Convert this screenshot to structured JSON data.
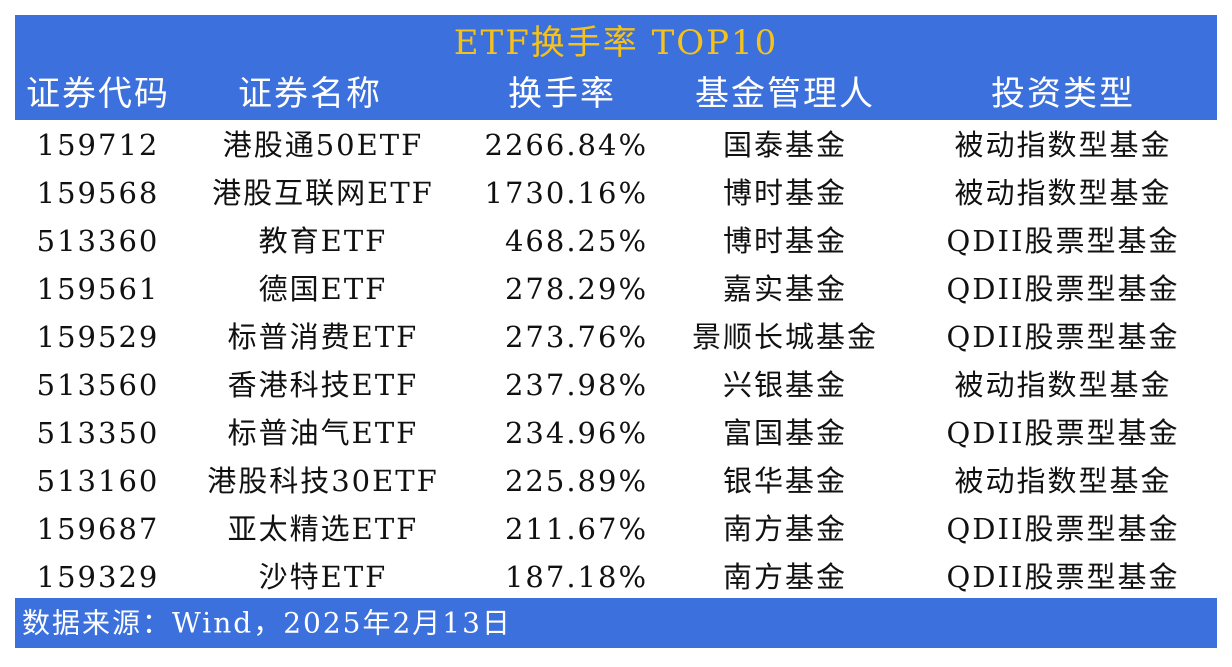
{
  "header": {
    "title": "ETF换手率 TOP10"
  },
  "table": {
    "columns": [
      "证券代码",
      "证券名称",
      "换手率",
      "基金管理人",
      "投资类型"
    ],
    "rows": [
      [
        "159712",
        "港股通50ETF",
        "2266.84%",
        "国泰基金",
        "被动指数型基金"
      ],
      [
        "159568",
        "港股互联网ETF",
        "1730.16%",
        "博时基金",
        "被动指数型基金"
      ],
      [
        "513360",
        "教育ETF",
        "468.25%",
        "博时基金",
        "QDII股票型基金"
      ],
      [
        "159561",
        "德国ETF",
        "278.29%",
        "嘉实基金",
        "QDII股票型基金"
      ],
      [
        "159529",
        "标普消费ETF",
        "273.76%",
        "景顺长城基金",
        "QDII股票型基金"
      ],
      [
        "513560",
        "香港科技ETF",
        "237.98%",
        "兴银基金",
        "被动指数型基金"
      ],
      [
        "513350",
        "标普油气ETF",
        "234.96%",
        "富国基金",
        "QDII股票型基金"
      ],
      [
        "513160",
        "港股科技30ETF",
        "225.89%",
        "银华基金",
        "被动指数型基金"
      ],
      [
        "159687",
        "亚太精选ETF",
        "211.67%",
        "南方基金",
        "QDII股票型基金"
      ],
      [
        "159329",
        "沙特ETF",
        "187.18%",
        "南方基金",
        "QDII股票型基金"
      ]
    ]
  },
  "footer": {
    "source": "数据来源：Wind，2025年2月13日"
  }
}
